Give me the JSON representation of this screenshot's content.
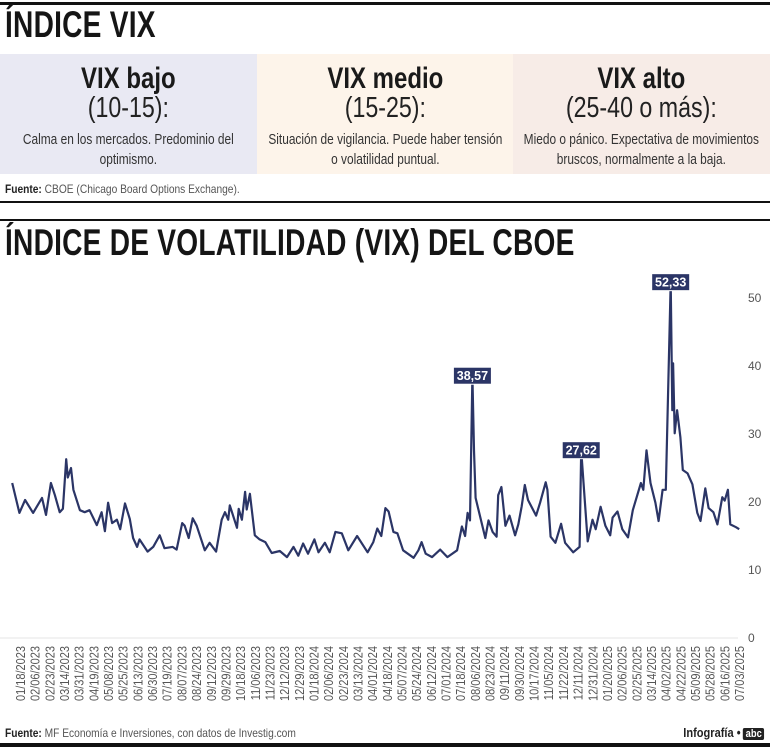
{
  "header": {
    "title": "ÍNDICE VIX"
  },
  "levels": [
    {
      "name": "VIX bajo",
      "range": "(10-15):",
      "description": "Calma en los mercados. Predominio del optimismo.",
      "color": "#e9e9f3"
    },
    {
      "name": "VIX medio",
      "range": "(15-25):",
      "description": "Situación de vigilancia. Puede haber tensión o volatilidad puntual.",
      "color": "#fdf4ea"
    },
    {
      "name": "VIX alto",
      "range": "(25-40 o más):",
      "description": "Miedo o pánico. Expectativa de movimientos bruscos, normalmente a la baja.",
      "color": "#f7ece7"
    }
  ],
  "source_top": {
    "label": "Fuente:",
    "text": "CBOE (Chicago Board Options Exchange)."
  },
  "source_bottom": {
    "label": "Fuente:",
    "text": "MF Economía e Inversiones, con datos de Investig.com"
  },
  "credit": {
    "text": "Infografía •",
    "logo": "abc"
  },
  "chart_data": {
    "type": "line",
    "title": "ÍNDICE DE VOLATILIDAD (VIX) DEL CBOE",
    "xlabel": "",
    "ylabel": "",
    "ylim": [
      0,
      50
    ],
    "yticks": [
      "0",
      "10",
      "20",
      "30",
      "40",
      "50"
    ],
    "yaxis_position": "right",
    "grid": false,
    "line_color": "#2b3566",
    "xticks": [
      "01/18/2023",
      "02/06/2023",
      "02/23/2023",
      "03/14/2023",
      "03/31/2023",
      "04/19/2023",
      "05/08/2023",
      "05/25/2023",
      "06/13/2023",
      "06/30/2023",
      "07/19/2023",
      "08/07/2023",
      "08/24/2023",
      "09/12/2023",
      "09/29/2023",
      "10/18/2023",
      "11/06/2023",
      "11/23/2023",
      "12/12/2023",
      "12/29/2023",
      "01/18/2024",
      "02/06/2024",
      "02/23/2024",
      "03/13/2024",
      "04/01/2024",
      "04/18/2024",
      "05/07/2024",
      "05/24/2024",
      "06/12/2024",
      "07/01/2024",
      "07/18/2024",
      "08/06/2024",
      "08/23/2024",
      "09/11/2024",
      "09/30/2024",
      "10/17/2024",
      "11/05/2024",
      "11/22/2024",
      "12/11/2024",
      "12/31/2024",
      "01/20/2025",
      "02/06/2025",
      "02/25/2025",
      "03/14/2025",
      "04/02/2025",
      "04/22/2025",
      "05/09/2025",
      "05/28/2025",
      "06/16/2025",
      "07/03/2025"
    ],
    "series": [
      {
        "points": [
          [
            "01/12/2023",
            22.8
          ],
          [
            "01/21/2023",
            18.4
          ],
          [
            "01/28/2023",
            20.3
          ],
          [
            "02/07/2023",
            18.4
          ],
          [
            "02/18/2023",
            20.6
          ],
          [
            "02/23/2023",
            18.1
          ],
          [
            "03/01/2023",
            22.8
          ],
          [
            "03/06/2023",
            21.0
          ],
          [
            "03/12/2023",
            18.5
          ],
          [
            "03/16/2023",
            19.0
          ],
          [
            "03/20/2023",
            26.3
          ],
          [
            "03/22/2023",
            23.6
          ],
          [
            "03/26/2023",
            25.0
          ],
          [
            "03/29/2023",
            21.8
          ],
          [
            "04/06/2023",
            18.8
          ],
          [
            "04/12/2023",
            18.5
          ],
          [
            "04/18/2023",
            18.8
          ],
          [
            "04/27/2023",
            16.6
          ],
          [
            "05/03/2023",
            18.5
          ],
          [
            "05/07/2023",
            15.7
          ],
          [
            "05/11/2023",
            19.9
          ],
          [
            "05/16/2023",
            16.9
          ],
          [
            "05/22/2023",
            17.4
          ],
          [
            "05/26/2023",
            16.0
          ],
          [
            "06/01/2023",
            19.8
          ],
          [
            "06/07/2023",
            17.5
          ],
          [
            "06/11/2023",
            14.7
          ],
          [
            "06/16/2023",
            13.4
          ],
          [
            "06/19/2023",
            14.5
          ],
          [
            "06/29/2023",
            12.7
          ],
          [
            "07/06/2023",
            13.4
          ],
          [
            "07/14/2023",
            15.1
          ],
          [
            "07/20/2023",
            13.2
          ],
          [
            "07/30/2023",
            13.4
          ],
          [
            "08/04/2023",
            13.0
          ],
          [
            "08/11/2023",
            16.9
          ],
          [
            "08/14/2023",
            16.5
          ],
          [
            "08/19/2023",
            14.7
          ],
          [
            "08/24/2023",
            17.6
          ],
          [
            "08/29/2023",
            16.5
          ],
          [
            "09/08/2023",
            12.9
          ],
          [
            "09/14/2023",
            14.0
          ],
          [
            "09/22/2023",
            12.7
          ],
          [
            "09/29/2023",
            17.4
          ],
          [
            "10/03/2023",
            18.5
          ],
          [
            "10/07/2023",
            17.4
          ],
          [
            "10/09/2023",
            19.5
          ],
          [
            "10/18/2023",
            16.2
          ],
          [
            "10/20/2023",
            19.0
          ],
          [
            "10/24/2023",
            17.4
          ],
          [
            "10/28/2023",
            21.5
          ],
          [
            "10/30/2023",
            18.9
          ],
          [
            "11/03/2023",
            21.2
          ],
          [
            "11/09/2023",
            15.1
          ],
          [
            "11/15/2023",
            14.5
          ],
          [
            "11/22/2023",
            14.1
          ],
          [
            "11/30/2023",
            12.5
          ],
          [
            "12/10/2023",
            12.8
          ],
          [
            "12/19/2023",
            11.9
          ],
          [
            "12/27/2023",
            13.4
          ],
          [
            "01/02/2024",
            12.1
          ],
          [
            "01/08/2024",
            13.9
          ],
          [
            "01/14/2024",
            12.4
          ],
          [
            "01/22/2024",
            14.5
          ],
          [
            "01/27/2024",
            12.6
          ],
          [
            "02/04/2024",
            14.0
          ],
          [
            "02/10/2024",
            12.6
          ],
          [
            "02/17/2024",
            15.6
          ],
          [
            "02/25/2024",
            15.4
          ],
          [
            "03/04/2024",
            12.9
          ],
          [
            "03/15/2024",
            15.0
          ],
          [
            "03/28/2024",
            12.6
          ],
          [
            "04/04/2024",
            14.1
          ],
          [
            "04/09/2024",
            16.1
          ],
          [
            "04/14/2024",
            15.0
          ],
          [
            "04/19/2024",
            19.1
          ],
          [
            "04/23/2024",
            18.6
          ],
          [
            "04/29/2024",
            15.6
          ],
          [
            "05/04/2024",
            15.4
          ],
          [
            "05/11/2024",
            12.9
          ],
          [
            "05/24/2024",
            11.8
          ],
          [
            "05/30/2024",
            12.9
          ],
          [
            "06/03/2024",
            14.1
          ],
          [
            "06/08/2024",
            12.4
          ],
          [
            "06/16/2024",
            11.9
          ],
          [
            "06/26/2024",
            13.0
          ],
          [
            "07/05/2024",
            11.9
          ],
          [
            "07/17/2024",
            12.9
          ],
          [
            "07/23/2024",
            16.4
          ],
          [
            "07/27/2024",
            15.0
          ],
          [
            "07/30/2024",
            18.4
          ],
          [
            "08/02/2024",
            17.3
          ],
          [
            "08/05/2024",
            38.57
          ],
          [
            "08/07/2024",
            27.6
          ],
          [
            "08/09/2024",
            20.6
          ],
          [
            "08/21/2024",
            14.7
          ],
          [
            "08/25/2024",
            17.3
          ],
          [
            "08/30/2024",
            15.6
          ],
          [
            "09/04/2024",
            14.9
          ],
          [
            "09/06/2024",
            21.0
          ],
          [
            "09/10/2024",
            22.2
          ],
          [
            "09/15/2024",
            16.5
          ],
          [
            "09/20/2024",
            18.0
          ],
          [
            "09/27/2024",
            15.1
          ],
          [
            "10/01/2024",
            16.7
          ],
          [
            "10/05/2024",
            19.3
          ],
          [
            "10/09/2024",
            22.5
          ],
          [
            "10/13/2024",
            20.3
          ],
          [
            "10/23/2024",
            18.0
          ],
          [
            "10/28/2024",
            19.9
          ],
          [
            "11/04/2024",
            22.9
          ],
          [
            "11/06/2024",
            21.8
          ],
          [
            "11/10/2024",
            14.9
          ],
          [
            "11/16/2024",
            14.0
          ],
          [
            "11/23/2024",
            16.8
          ],
          [
            "11/28/2024",
            14.0
          ],
          [
            "12/08/2024",
            12.6
          ],
          [
            "12/16/2024",
            13.4
          ],
          [
            "12/18/2024",
            27.62
          ],
          [
            "12/26/2024",
            14.2
          ],
          [
            "01/01/2025",
            17.4
          ],
          [
            "01/05/2025",
            16.0
          ],
          [
            "01/11/2025",
            19.3
          ],
          [
            "01/17/2025",
            16.5
          ],
          [
            "01/23/2025",
            15.1
          ],
          [
            "01/26/2025",
            17.7
          ],
          [
            "02/01/2025",
            18.6
          ],
          [
            "02/07/2025",
            16.0
          ],
          [
            "02/14/2025",
            14.8
          ],
          [
            "02/20/2025",
            18.8
          ],
          [
            "03/02/2025",
            22.8
          ],
          [
            "03/05/2025",
            21.8
          ],
          [
            "03/09/2025",
            27.6
          ],
          [
            "03/14/2025",
            22.8
          ],
          [
            "03/20/2025",
            19.9
          ],
          [
            "03/24/2025",
            17.2
          ],
          [
            "03/29/2025",
            21.8
          ],
          [
            "04/02/2025",
            21.8
          ],
          [
            "04/08/2025",
            52.33
          ],
          [
            "04/10/2025",
            33.5
          ],
          [
            "04/11/2025",
            40.4
          ],
          [
            "04/13/2025",
            30.1
          ],
          [
            "04/16/2025",
            33.5
          ],
          [
            "04/20/2025",
            29.5
          ],
          [
            "04/23/2025",
            24.7
          ],
          [
            "04/29/2025",
            24.2
          ],
          [
            "05/05/2025",
            22.6
          ],
          [
            "05/11/2025",
            18.4
          ],
          [
            "05/15/2025",
            17.2
          ],
          [
            "05/21/2025",
            22.0
          ],
          [
            "05/25/2025",
            19.1
          ],
          [
            "05/31/2025",
            18.5
          ],
          [
            "06/05/2025",
            16.7
          ],
          [
            "06/11/2025",
            20.7
          ],
          [
            "06/14/2025",
            20.2
          ],
          [
            "06/18/2025",
            21.8
          ],
          [
            "06/21/2025",
            16.7
          ],
          [
            "06/28/2025",
            16.3
          ],
          [
            "07/02/2025",
            16.0
          ]
        ]
      }
    ],
    "annotations": [
      {
        "date": "08/05/2024",
        "value": 38.57,
        "label": "38,57"
      },
      {
        "date": "12/18/2024",
        "value": 27.62,
        "label": "27,62"
      },
      {
        "date": "04/08/2025",
        "value": 52.33,
        "label": "52,33"
      }
    ]
  }
}
